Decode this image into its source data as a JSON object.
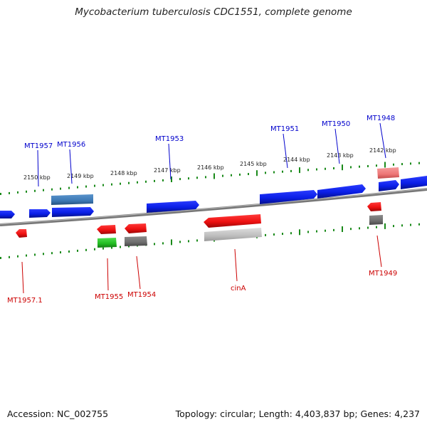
{
  "title": "Mycobacterium tuberculosis CDC1551, complete genome",
  "footer": {
    "accession": "Accession: NC_002755",
    "summary": "Topology: circular; Length: 4,403,837 bp; Genes: 4,237"
  },
  "colors": {
    "forward_gene": "#0a1ee6",
    "forward_gene_alt": "#3c78b4",
    "reverse_gene": "#ee1111",
    "reverse_gene_light": "#ee7777",
    "gray_feature": "#6e6e6e",
    "light_gray_feature": "#bdbdbd",
    "green_feature": "#22bb22",
    "axis": "#777777",
    "tick": "#1a8a1a",
    "forward_label": "#0000cc",
    "reverse_label": "#cc0000"
  },
  "scale_labels": [
    "2150 kbp",
    "2149 kbp",
    "2148 kbp",
    "2147 kbp",
    "2146 kbp",
    "2145 kbp",
    "2144 kbp",
    "2143 kbp",
    "2142 kbp"
  ],
  "forward_labels": [
    "MT1957",
    "MT1956",
    "MT1953",
    "MT1951",
    "MT1950",
    "MT1948"
  ],
  "reverse_labels": [
    "MT1957.1",
    "MT1955",
    "MT1954",
    "cinA",
    "MT1949"
  ]
}
